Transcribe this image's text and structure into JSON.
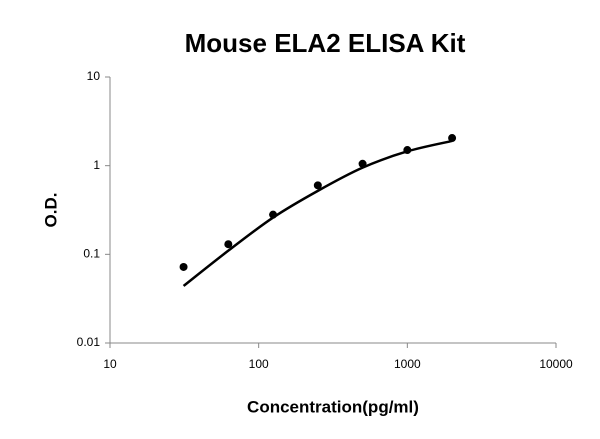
{
  "chart_data": {
    "type": "scatter",
    "title": "Mouse ELA2 ELISA Kit",
    "x_label": "Concentration(pg/ml)",
    "y_label": "O.D.",
    "x_log": true,
    "y_log": true,
    "xlim": [
      10,
      10000
    ],
    "xticks": [
      10,
      100,
      1000,
      10000
    ],
    "ylim": [
      0.01,
      10
    ],
    "yticks": [
      0.01,
      0.1,
      1,
      10
    ],
    "series": [
      {
        "color": "#000000",
        "x": [
          31.25,
          62.5,
          125,
          250,
          500,
          1000,
          2000
        ],
        "values": [
          0.072,
          0.13,
          0.28,
          0.6,
          1.05,
          1.5,
          2.05
        ]
      }
    ],
    "fit": {
      "color": "#000000",
      "x": [
        31.25,
        62.5,
        125,
        250,
        500,
        1000,
        2000
      ],
      "values": [
        0.044,
        0.11,
        0.26,
        0.52,
        0.95,
        1.45,
        1.9
      ]
    }
  }
}
